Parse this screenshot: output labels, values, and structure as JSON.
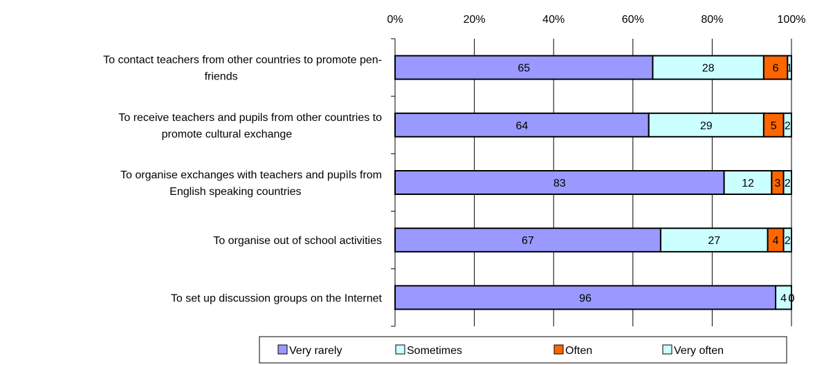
{
  "chart_data": {
    "type": "bar",
    "orientation": "horizontal",
    "stacked": "percent",
    "xlim": [
      0,
      100
    ],
    "x_ticks": [
      "0%",
      "20%",
      "40%",
      "60%",
      "80%",
      "100%"
    ],
    "x_axis_position": "top",
    "grid": true,
    "legend_position": "bottom",
    "categories": [
      [
        "To contact teachers from other countries to promote pen-",
        "friends"
      ],
      [
        "To receive teachers and pupils from other countries to",
        "promote cultural exchange"
      ],
      [
        "To organise exchanges with teachers and pupìls from",
        "English speaking countries"
      ],
      [
        "To organise out of school activities"
      ],
      [
        "To set up discussion groups on the Internet"
      ]
    ],
    "series": [
      {
        "name": "Very rarely",
        "color": "#9999FF",
        "values": [
          65,
          64,
          83,
          67,
          96
        ]
      },
      {
        "name": "Sometimes",
        "color": "#CCFFFF",
        "values": [
          28,
          29,
          12,
          27,
          4
        ]
      },
      {
        "name": "Often",
        "color": "#FF6600",
        "values": [
          6,
          5,
          3,
          4,
          0
        ]
      },
      {
        "name": "Very often",
        "color": "#CCFFFF",
        "values": [
          1,
          2,
          2,
          2,
          0
        ]
      }
    ]
  }
}
